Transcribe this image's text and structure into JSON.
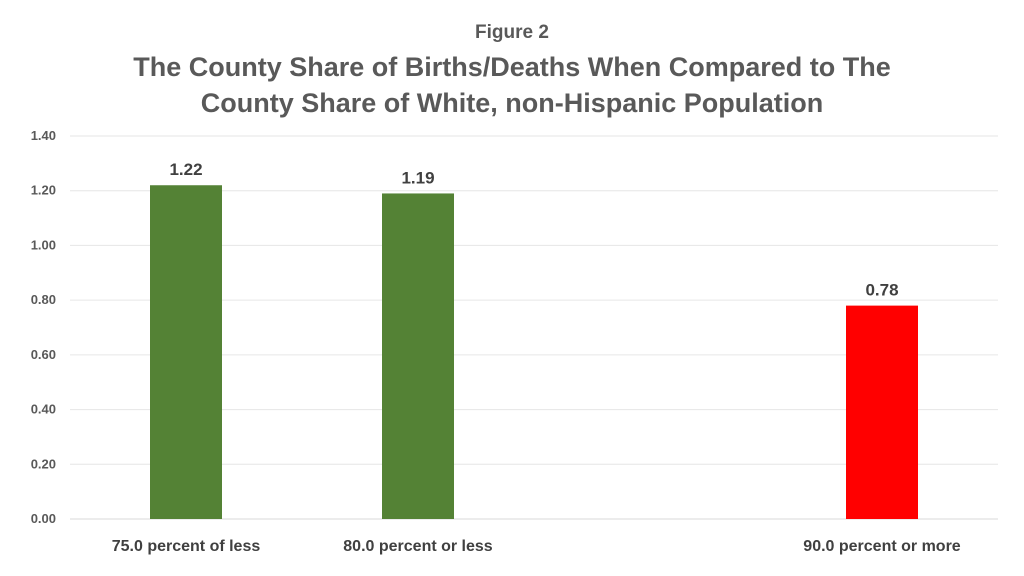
{
  "figure_label": "Figure 2",
  "title": "The County Share of Births/Deaths When Compared to The County Share of White, non-Hispanic Population",
  "chart_data": {
    "type": "bar",
    "title": "The County Share of Births/Deaths When Compared to The County Share of White, non-Hispanic Population",
    "xlabel": "",
    "ylabel": "",
    "categories": [
      "75.0 percent of less",
      "80.0 percent or less",
      "",
      "90.0 percent or more"
    ],
    "values": [
      1.22,
      1.19,
      null,
      0.78
    ],
    "data_labels": [
      "1.22",
      "1.19",
      "",
      "0.78"
    ],
    "bar_colors": [
      "#548235",
      "#548235",
      "#548235",
      "#ff0000"
    ],
    "ylim": [
      0,
      1.4
    ],
    "yticks": [
      0.0,
      0.2,
      0.4,
      0.6,
      0.8,
      1.0,
      1.2,
      1.4
    ],
    "ytick_labels": [
      "0.00",
      "0.20",
      "0.40",
      "0.60",
      "0.80",
      "1.00",
      "1.20",
      "1.40"
    ],
    "grid": true,
    "legend": "none"
  }
}
